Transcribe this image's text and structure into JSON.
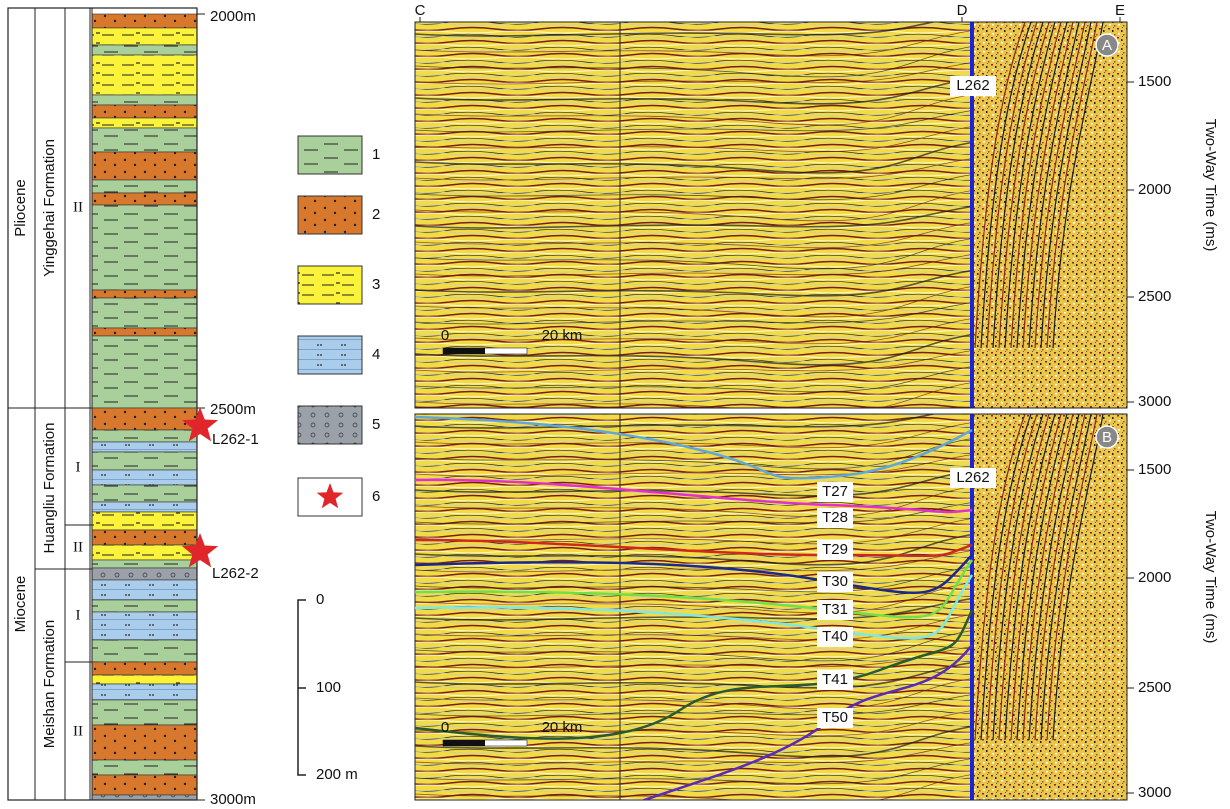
{
  "stratigraphy": {
    "depths": [
      "2000m",
      "2500m",
      "3000m"
    ],
    "series": [
      "Pliocene",
      "Miocene"
    ],
    "formations": [
      "Yinggehai Formation",
      "Huangliu Formation",
      "Meishan Formation"
    ],
    "members": [
      "II",
      "I",
      "II",
      "I",
      "II"
    ],
    "wells": [
      "L262-1",
      "L262-2"
    ]
  },
  "legend": {
    "items": [
      "1",
      "2",
      "3",
      "4",
      "5",
      "6"
    ]
  },
  "scale_bar": {
    "labels": [
      "0",
      "100",
      "200 m"
    ]
  },
  "seismic": {
    "points": [
      "C",
      "D",
      "E"
    ],
    "panels": [
      {
        "label": "A",
        "well": "L262",
        "scale": [
          "0",
          "20 km"
        ],
        "axis_title": "Two-Way Time (ms)",
        "ticks": [
          1500,
          2000,
          2500,
          3000
        ]
      },
      {
        "label": "B",
        "well": "L262",
        "scale": [
          "0",
          "20 km"
        ],
        "axis_title": "Two-Way Time (ms)",
        "ticks": [
          1500,
          2000,
          2500,
          3000
        ],
        "horizons": [
          "T27",
          "T28",
          "T29",
          "T30",
          "T31",
          "T40",
          "T41",
          "T50"
        ]
      }
    ]
  }
}
